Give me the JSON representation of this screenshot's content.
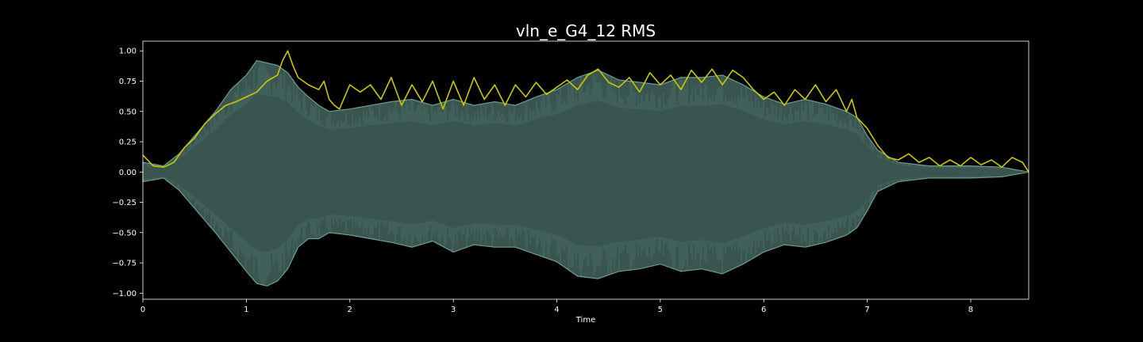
{
  "chart_data": {
    "type": "area",
    "title": "vln_e_G4_12 RMS",
    "xlabel": "Time",
    "ylabel": "",
    "xlim": [
      0,
      8.56
    ],
    "ylim": [
      -1.05,
      1.08
    ],
    "x_ticks": [
      0,
      1,
      2,
      3,
      4,
      5,
      6,
      7,
      8
    ],
    "x_tick_labels": [
      "0",
      "1",
      "2",
      "3",
      "4",
      "5",
      "6",
      "7",
      "8"
    ],
    "y_ticks": [
      1.0,
      0.75,
      0.5,
      0.25,
      0.0,
      -0.25,
      -0.5,
      -0.75,
      -1.0
    ],
    "y_tick_labels": [
      "1.00",
      "0.75",
      "0.50",
      "0.25",
      "0.00",
      "−0.25",
      "−0.50",
      "−0.75",
      "−1.00"
    ],
    "grid": false,
    "colors": {
      "background": "#000000",
      "waveform_fill": "#3a544f",
      "waveform_peak": "#6a9e92",
      "rms_line": "#c8c800",
      "axes": "#ffffff"
    },
    "series": [
      {
        "name": "waveform envelope",
        "kind": "envelope",
        "x": [
          0,
          0.2,
          0.35,
          0.5,
          0.7,
          0.85,
          1.0,
          1.1,
          1.2,
          1.3,
          1.4,
          1.5,
          1.6,
          1.7,
          1.8,
          2.0,
          2.2,
          2.4,
          2.6,
          2.8,
          3.0,
          3.2,
          3.4,
          3.6,
          3.8,
          4.0,
          4.2,
          4.4,
          4.6,
          4.8,
          5.0,
          5.2,
          5.4,
          5.6,
          5.8,
          6.0,
          6.2,
          6.4,
          6.6,
          6.8,
          6.9,
          7.0,
          7.1,
          7.3,
          7.6,
          8.0,
          8.3,
          8.56
        ],
        "upper": [
          0.08,
          0.05,
          0.15,
          0.3,
          0.5,
          0.68,
          0.8,
          0.92,
          0.9,
          0.88,
          0.82,
          0.7,
          0.62,
          0.55,
          0.5,
          0.52,
          0.55,
          0.58,
          0.6,
          0.55,
          0.6,
          0.55,
          0.58,
          0.55,
          0.62,
          0.68,
          0.78,
          0.84,
          0.76,
          0.74,
          0.72,
          0.78,
          0.78,
          0.8,
          0.72,
          0.62,
          0.56,
          0.6,
          0.56,
          0.5,
          0.45,
          0.3,
          0.18,
          0.08,
          0.05,
          0.05,
          0.04,
          0.0
        ],
        "lower": [
          -0.08,
          -0.05,
          -0.15,
          -0.3,
          -0.5,
          -0.66,
          -0.82,
          -0.92,
          -0.94,
          -0.9,
          -0.8,
          -0.62,
          -0.55,
          -0.55,
          -0.5,
          -0.52,
          -0.55,
          -0.58,
          -0.62,
          -0.57,
          -0.66,
          -0.6,
          -0.62,
          -0.62,
          -0.68,
          -0.74,
          -0.86,
          -0.88,
          -0.82,
          -0.8,
          -0.76,
          -0.82,
          -0.8,
          -0.84,
          -0.76,
          -0.66,
          -0.6,
          -0.62,
          -0.58,
          -0.52,
          -0.46,
          -0.32,
          -0.16,
          -0.08,
          -0.05,
          -0.05,
          -0.04,
          0.0
        ]
      },
      {
        "name": "RMS",
        "kind": "line",
        "x": [
          0,
          0.1,
          0.2,
          0.3,
          0.4,
          0.5,
          0.6,
          0.7,
          0.8,
          0.9,
          1.0,
          1.1,
          1.2,
          1.3,
          1.35,
          1.4,
          1.45,
          1.5,
          1.6,
          1.7,
          1.75,
          1.8,
          1.85,
          1.9,
          1.95,
          2.0,
          2.1,
          2.2,
          2.3,
          2.4,
          2.5,
          2.6,
          2.7,
          2.8,
          2.9,
          3.0,
          3.1,
          3.2,
          3.3,
          3.4,
          3.5,
          3.6,
          3.7,
          3.8,
          3.9,
          4.0,
          4.1,
          4.2,
          4.3,
          4.4,
          4.5,
          4.6,
          4.7,
          4.8,
          4.9,
          5.0,
          5.1,
          5.2,
          5.3,
          5.4,
          5.5,
          5.6,
          5.7,
          5.8,
          5.9,
          6.0,
          6.1,
          6.2,
          6.3,
          6.4,
          6.5,
          6.6,
          6.7,
          6.8,
          6.85,
          6.9,
          7.0,
          7.1,
          7.2,
          7.3,
          7.4,
          7.5,
          7.6,
          7.7,
          7.8,
          7.9,
          8.0,
          8.1,
          8.2,
          8.3,
          8.4,
          8.5,
          8.56
        ],
        "y": [
          0.14,
          0.05,
          0.04,
          0.08,
          0.2,
          0.28,
          0.4,
          0.48,
          0.55,
          0.58,
          0.62,
          0.66,
          0.75,
          0.8,
          0.92,
          1.0,
          0.88,
          0.78,
          0.72,
          0.68,
          0.75,
          0.6,
          0.55,
          0.52,
          0.62,
          0.72,
          0.66,
          0.72,
          0.6,
          0.78,
          0.55,
          0.72,
          0.58,
          0.75,
          0.52,
          0.75,
          0.55,
          0.78,
          0.6,
          0.72,
          0.55,
          0.72,
          0.62,
          0.74,
          0.64,
          0.7,
          0.76,
          0.68,
          0.8,
          0.85,
          0.74,
          0.7,
          0.78,
          0.66,
          0.82,
          0.72,
          0.8,
          0.68,
          0.84,
          0.74,
          0.85,
          0.72,
          0.84,
          0.78,
          0.68,
          0.6,
          0.66,
          0.55,
          0.68,
          0.6,
          0.72,
          0.58,
          0.68,
          0.5,
          0.6,
          0.45,
          0.36,
          0.22,
          0.12,
          0.1,
          0.15,
          0.08,
          0.12,
          0.05,
          0.1,
          0.05,
          0.12,
          0.06,
          0.1,
          0.04,
          0.12,
          0.08,
          0.0
        ]
      }
    ]
  }
}
